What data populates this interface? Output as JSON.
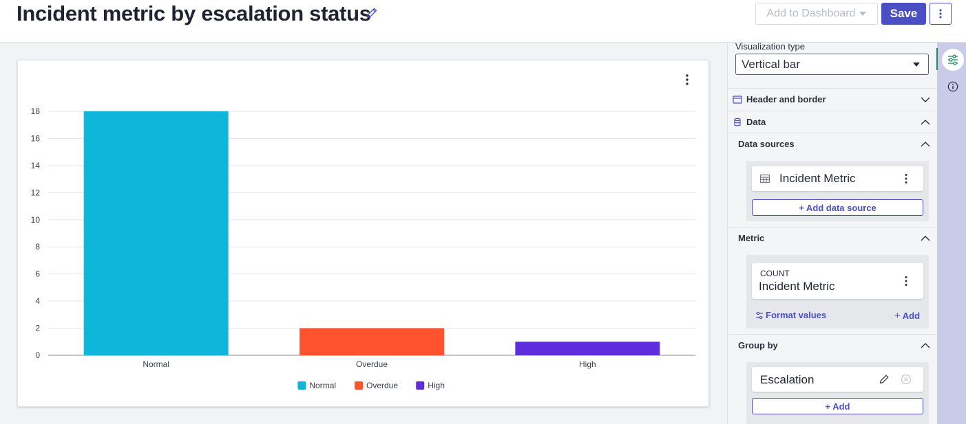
{
  "header": {
    "title": "Incident metric by escalation status",
    "add_to_dashboard_label": "Add to Dashboard",
    "save_label": "Save"
  },
  "colors": {
    "accent": "#4b4fc4",
    "normal": "#10b6da",
    "overdue": "#ff5330",
    "high": "#5f2ddd"
  },
  "chart_data": {
    "type": "bar",
    "categories": [
      "Normal",
      "Overdue",
      "High"
    ],
    "values": [
      18,
      2,
      1
    ],
    "colors": [
      "#10b6da",
      "#ff5330",
      "#5f2ddd"
    ],
    "title": "",
    "xlabel": "",
    "ylabel": "",
    "ylim": [
      0,
      18
    ],
    "yticks": [
      0,
      2,
      4,
      6,
      8,
      10,
      12,
      14,
      16,
      18
    ],
    "grid": true,
    "legend": {
      "placement": "bottom",
      "entries": [
        "Normal",
        "Overdue",
        "High"
      ]
    }
  },
  "panel": {
    "visualization_type_label": "Visualization type",
    "visualization_type_value": "Vertical bar",
    "sections": {
      "header_and_border": "Header and border",
      "data": "Data",
      "data_sources": "Data sources",
      "metric": "Metric",
      "group_by": "Group by"
    },
    "data_source_name": "Incident Metric",
    "add_data_source_label": "+ Add data source",
    "metric_aggregation": "COUNT",
    "metric_name": "Incident Metric",
    "format_values_label": "Format values",
    "metric_add_label": "Add",
    "group_by_field": "Escalation",
    "group_by_add_label": "+ Add"
  }
}
